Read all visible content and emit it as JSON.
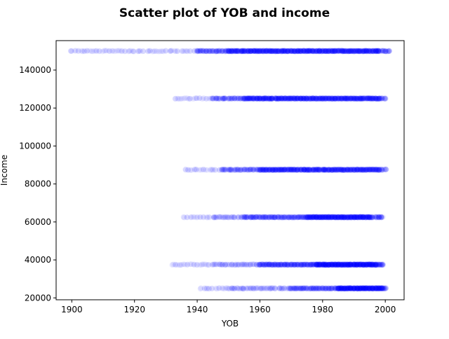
{
  "chart_data": {
    "type": "scatter",
    "title": "Scatter plot of YOB and income",
    "xlabel": "YOB",
    "ylabel": "Income",
    "xlim": [
      1895,
      2006
    ],
    "ylim": [
      19000,
      155500
    ],
    "x_ticks": [
      1900,
      1920,
      1940,
      1960,
      1980,
      2000
    ],
    "y_ticks": [
      20000,
      40000,
      60000,
      80000,
      100000,
      120000,
      140000
    ],
    "x_tick_labels": [
      "1900",
      "1920",
      "1940",
      "1960",
      "1980",
      "2000"
    ],
    "y_tick_labels": [
      "20000",
      "40000",
      "60000",
      "80000",
      "100000",
      "120000",
      "140000"
    ],
    "grid": false,
    "legend": "none",
    "marker": {
      "color": "#0000ff",
      "alpha": 0.08,
      "size": 8
    },
    "series": [
      {
        "y": 25000,
        "min_yob": 1941,
        "max_yob": 2000,
        "density": "highest 1985-1999"
      },
      {
        "y": 37500,
        "min_yob": 1932,
        "max_yob": 1999,
        "density": "highest 1978-1997"
      },
      {
        "y": 62500,
        "min_yob": 1936,
        "max_yob": 1999,
        "density": "highest 1975-1995"
      },
      {
        "y": 87500,
        "min_yob": 1936,
        "max_yob": 2000,
        "density": "highest 1960-1998"
      },
      {
        "y": 125000,
        "min_yob": 1933,
        "max_yob": 2000,
        "density": "highest 1955-1998"
      },
      {
        "y": 150000,
        "min_yob": 1900,
        "max_yob": 2001,
        "density": "highest 1950-1998"
      }
    ]
  }
}
